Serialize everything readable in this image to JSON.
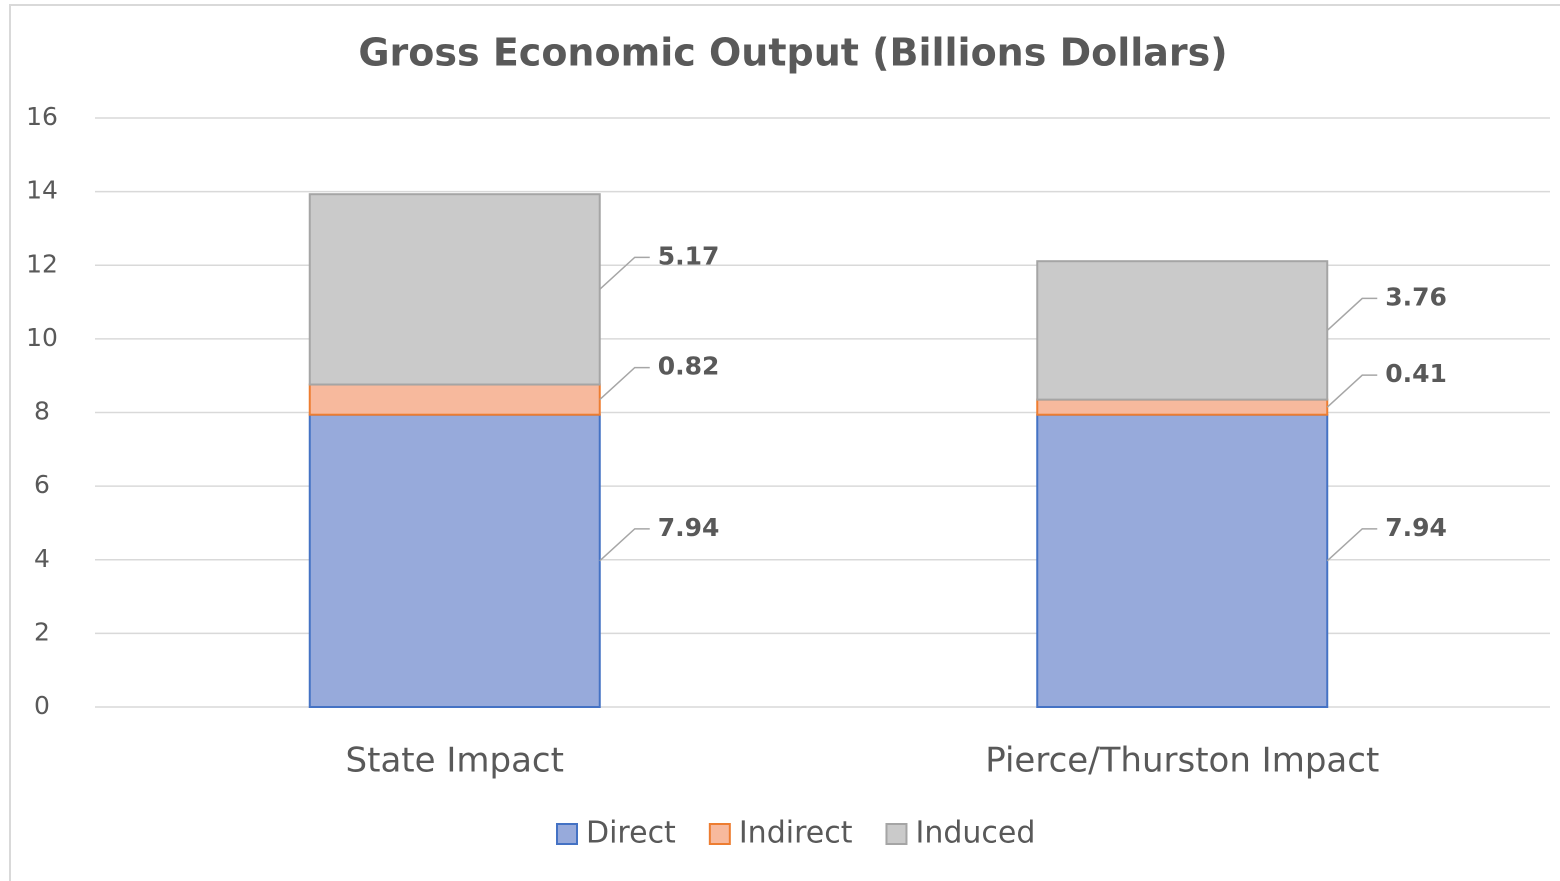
{
  "chart_data": {
    "type": "stacked_bar",
    "title": "Gross Economic Output (Billions Dollars)",
    "categories": [
      "State Impact",
      "Pierce/Thurston Impact"
    ],
    "series": [
      {
        "name": "Direct",
        "color": "#97aadb",
        "border": "#4472c4",
        "values": [
          7.94,
          7.94
        ]
      },
      {
        "name": "Indirect",
        "color": "#f7b99d",
        "border": "#ed7d31",
        "values": [
          0.82,
          0.41
        ]
      },
      {
        "name": "Induced",
        "color": "#cacaca",
        "border": "#a5a5a5",
        "values": [
          5.17,
          3.76
        ]
      }
    ],
    "ylim": [
      0,
      16
    ],
    "yticks": [
      0,
      2,
      4,
      6,
      8,
      10,
      12,
      14,
      16
    ],
    "grid": true,
    "legend": "bottom"
  }
}
